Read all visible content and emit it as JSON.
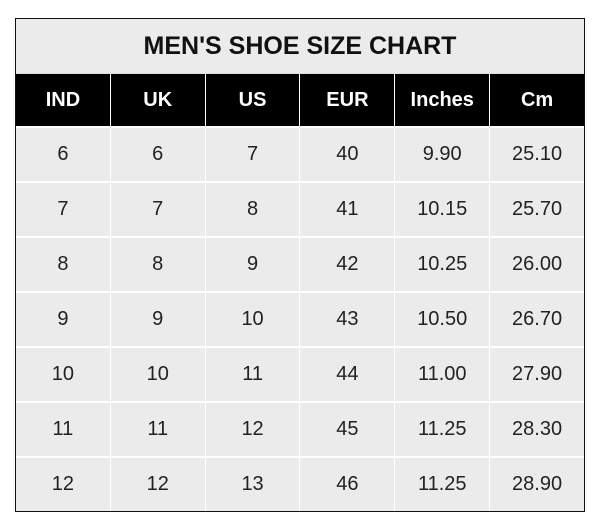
{
  "chart_data": {
    "type": "table",
    "title": "MEN'S SHOE SIZE CHART",
    "columns": [
      "IND",
      "UK",
      "US",
      "EUR",
      "Inches",
      "Cm"
    ],
    "rows": [
      [
        "6",
        "6",
        "7",
        "40",
        "9.90",
        "25.10"
      ],
      [
        "7",
        "7",
        "8",
        "41",
        "10.15",
        "25.70"
      ],
      [
        "8",
        "8",
        "9",
        "42",
        "10.25",
        "26.00"
      ],
      [
        "9",
        "9",
        "10",
        "43",
        "10.50",
        "26.70"
      ],
      [
        "10",
        "10",
        "11",
        "44",
        "11.00",
        "27.90"
      ],
      [
        "11",
        "11",
        "12",
        "45",
        "11.25",
        "28.30"
      ],
      [
        "12",
        "12",
        "13",
        "46",
        "11.25",
        "28.90"
      ]
    ],
    "colors": {
      "header_bg": "#000000",
      "header_text": "#ffffff",
      "cell_bg": "#ebebeb",
      "grid": "#ffffff"
    }
  }
}
